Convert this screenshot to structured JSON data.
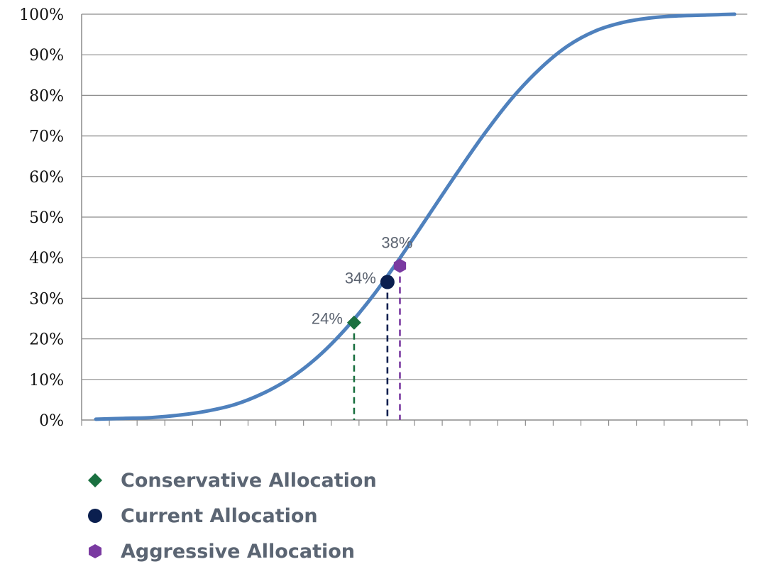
{
  "chart_data": {
    "type": "line",
    "ylim": [
      0,
      100
    ],
    "yticks": [
      "0%",
      "10%",
      "20%",
      "30%",
      "40%",
      "50%",
      "60%",
      "70%",
      "80%",
      "90%",
      "100%"
    ],
    "x_tick_count": 24,
    "grid": true,
    "line_color": "#4f81bd",
    "curve": {
      "x": [
        0,
        1,
        2,
        3,
        4,
        5,
        6,
        7,
        8,
        9,
        10,
        11,
        12,
        13,
        14,
        15,
        16,
        17,
        18,
        19,
        20,
        21,
        22,
        23
      ],
      "values": [
        0.2,
        0.4,
        0.6,
        1.2,
        2.2,
        3.8,
        6.5,
        10.3,
        15.6,
        22.5,
        30.8,
        40.4,
        50.6,
        60.8,
        70.6,
        79.4,
        86.6,
        92.2,
        95.9,
        98.0,
        99.1,
        99.6,
        99.8,
        100
      ]
    },
    "points": [
      {
        "name": "Conservative Allocation",
        "x": 9.3,
        "y": 24,
        "label": "24%",
        "marker": "diamond",
        "color": "#1a7040"
      },
      {
        "name": "Current Allocation",
        "x": 10.5,
        "y": 34,
        "label": "34%",
        "marker": "circle",
        "color": "#0b1f4f"
      },
      {
        "name": "Aggressive Allocation",
        "x": 10.95,
        "y": 38,
        "label": "38%",
        "marker": "hexagon",
        "color": "#7a3aa1"
      }
    ],
    "legend": {
      "position": "bottom-left",
      "items": [
        {
          "label": "Conservative Allocation",
          "marker": "diamond",
          "color": "#1a7040"
        },
        {
          "label": "Current Allocation",
          "marker": "circle",
          "color": "#0b1f4f"
        },
        {
          "label": "Aggressive Allocation",
          "marker": "hexagon",
          "color": "#7a3aa1"
        }
      ]
    }
  }
}
